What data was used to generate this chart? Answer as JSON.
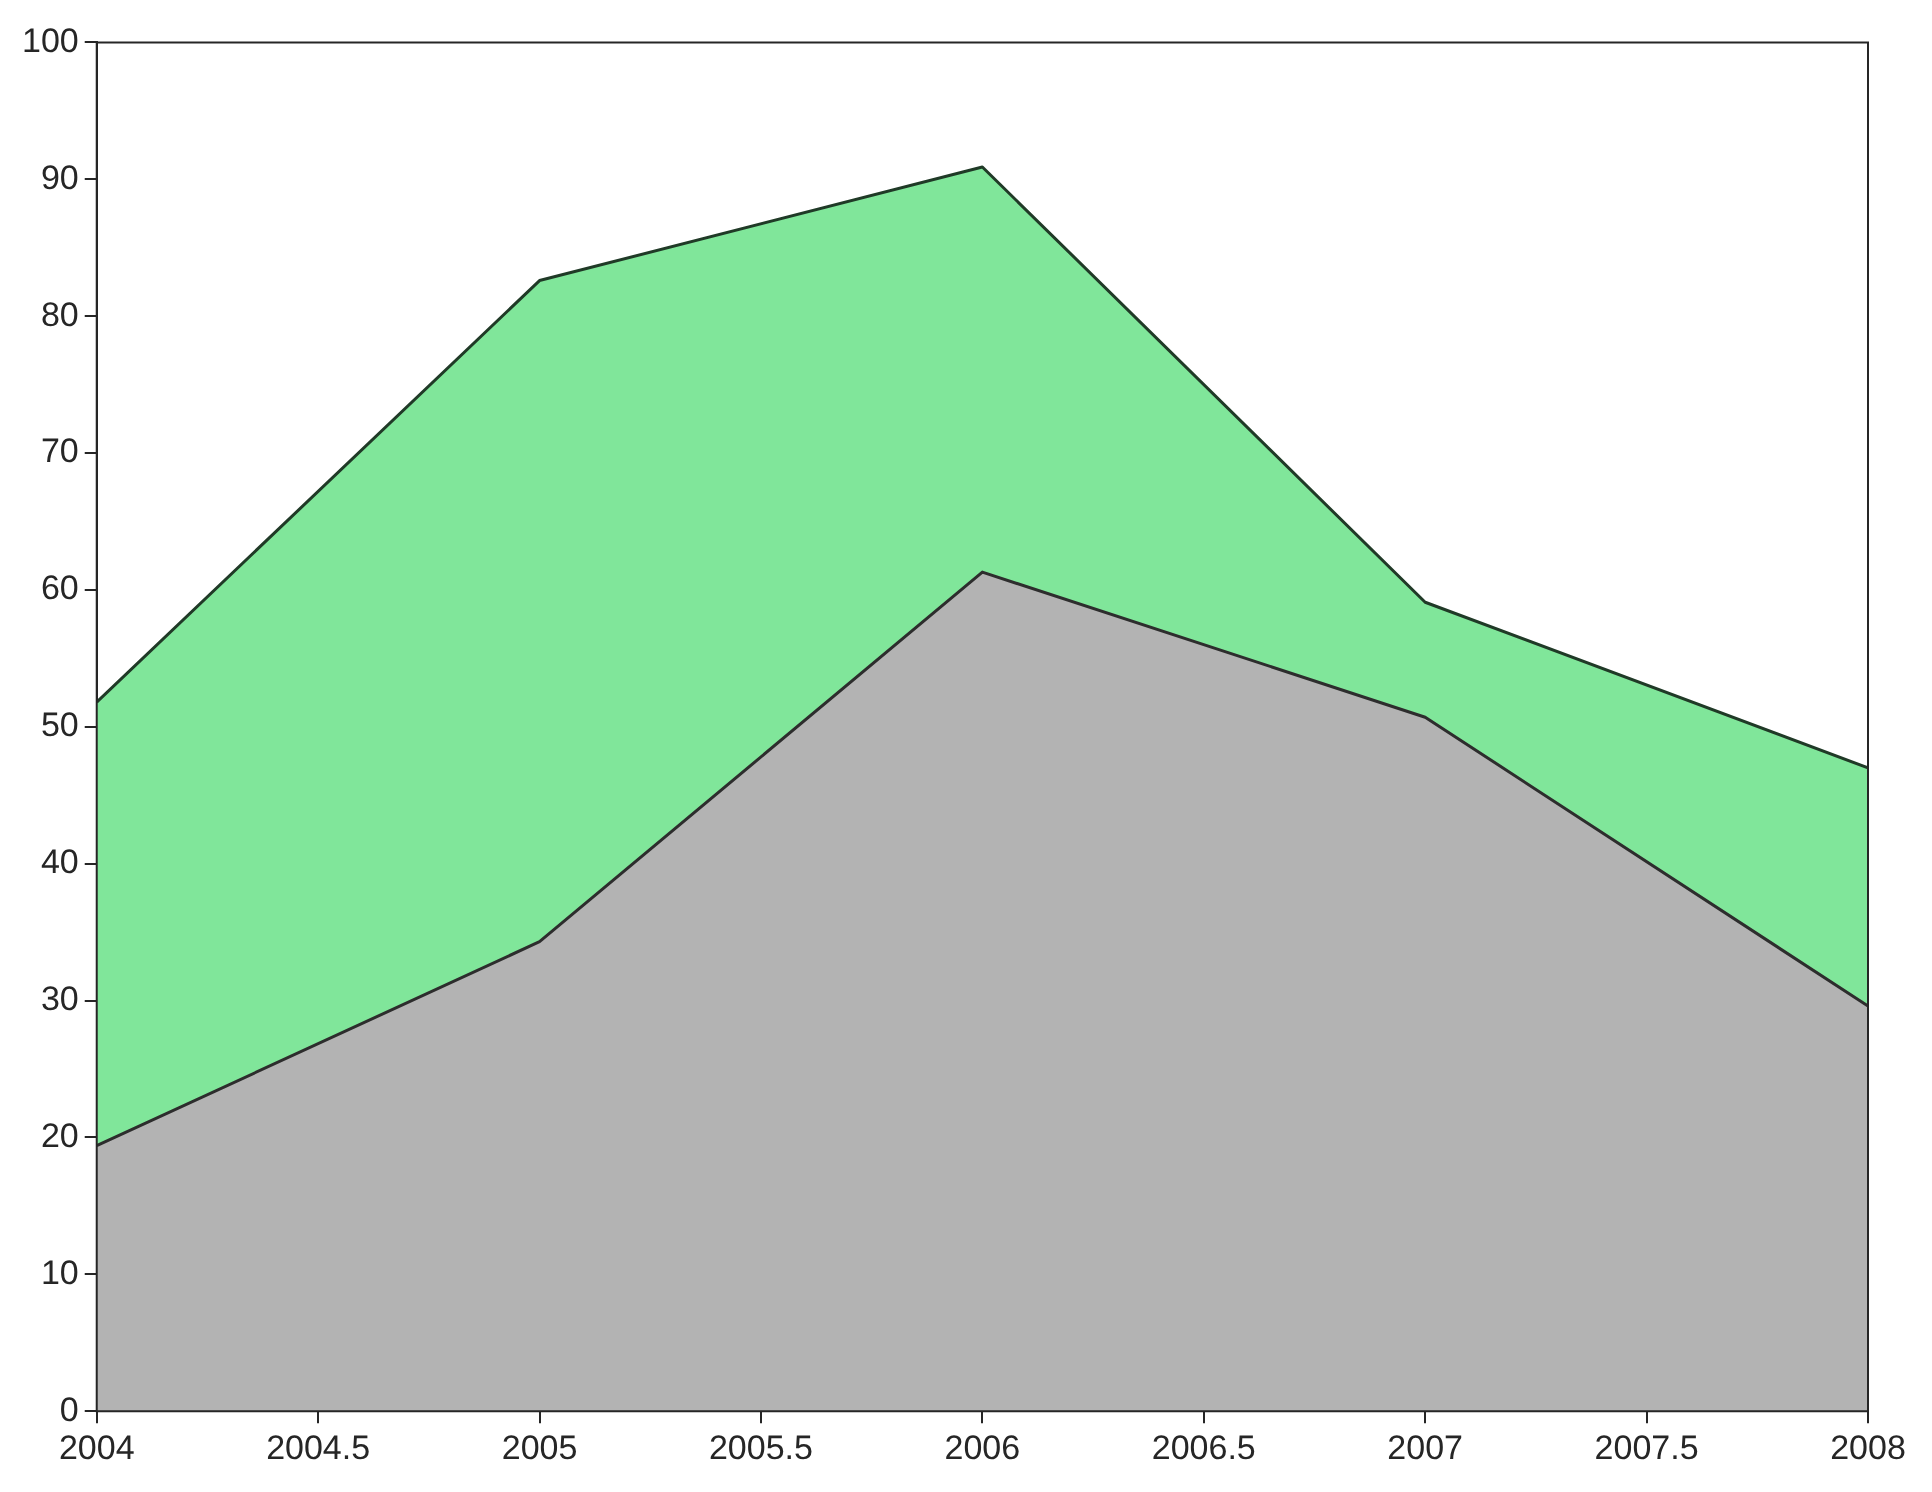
{
  "chart_data": {
    "type": "area",
    "stacked": true,
    "x": [
      2004,
      2005,
      2006,
      2007,
      2008
    ],
    "series": [
      {
        "color": "#b3b3b3",
        "values": [
          19.4,
          34.3,
          61.3,
          50.7,
          29.6
        ]
      },
      {
        "color": "#80e69a",
        "values": [
          32.4,
          48.3,
          29.6,
          8.4,
          17.4
        ]
      }
    ],
    "xlim": [
      2004,
      2008
    ],
    "xticks": [
      2004,
      2004.5,
      2005,
      2005.5,
      2006,
      2006.5,
      2007,
      2007.5,
      2008
    ],
    "ylim": [
      0,
      100
    ],
    "yticks": [
      0,
      10,
      20,
      30,
      40,
      50,
      60,
      70,
      80,
      90,
      100
    ],
    "grid": false,
    "legend": false
  }
}
